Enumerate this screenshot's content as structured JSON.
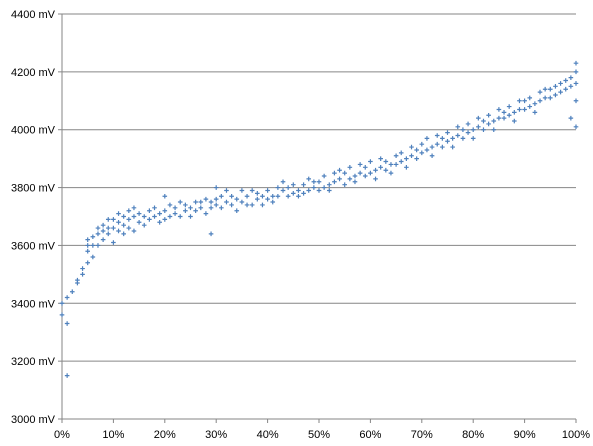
{
  "chart_data": {
    "type": "scatter",
    "title": "",
    "xlabel": "",
    "ylabel": "",
    "xlim": [
      0,
      100
    ],
    "ylim": [
      3000,
      4400
    ],
    "grid": true,
    "legend": "none",
    "marker": "plus",
    "color": "#4f81bd",
    "x_ticks": [
      {
        "value": 0,
        "label": "0%"
      },
      {
        "value": 10,
        "label": "10%"
      },
      {
        "value": 20,
        "label": "20%"
      },
      {
        "value": 30,
        "label": "30%"
      },
      {
        "value": 40,
        "label": "40%"
      },
      {
        "value": 50,
        "label": "50%"
      },
      {
        "value": 60,
        "label": "60%"
      },
      {
        "value": 70,
        "label": "70%"
      },
      {
        "value": 80,
        "label": "80%"
      },
      {
        "value": 90,
        "label": "90%"
      },
      {
        "value": 100,
        "label": "100%"
      }
    ],
    "y_ticks": [
      {
        "value": 3000,
        "label": "3000 mV"
      },
      {
        "value": 3200,
        "label": "3200 mV"
      },
      {
        "value": 3400,
        "label": "3400 mV"
      },
      {
        "value": 3600,
        "label": "3600 mV"
      },
      {
        "value": 3800,
        "label": "3800 mV"
      },
      {
        "value": 4000,
        "label": "4000 mV"
      },
      {
        "value": 4200,
        "label": "4200 mV"
      },
      {
        "value": 4400,
        "label": "4400 mV"
      }
    ],
    "series": [
      {
        "points": [
          [
            0,
            3400
          ],
          [
            0,
            3360
          ],
          [
            1,
            3420
          ],
          [
            1,
            3330
          ],
          [
            1,
            3150
          ],
          [
            2,
            3440
          ],
          [
            3,
            3480
          ],
          [
            3,
            3470
          ],
          [
            4,
            3500
          ],
          [
            4,
            3520
          ],
          [
            5,
            3540
          ],
          [
            5,
            3580
          ],
          [
            5,
            3600
          ],
          [
            5,
            3620
          ],
          [
            6,
            3560
          ],
          [
            6,
            3600
          ],
          [
            6,
            3630
          ],
          [
            7,
            3600
          ],
          [
            7,
            3640
          ],
          [
            7,
            3660
          ],
          [
            8,
            3620
          ],
          [
            8,
            3650
          ],
          [
            8,
            3670
          ],
          [
            9,
            3640
          ],
          [
            9,
            3660
          ],
          [
            9,
            3690
          ],
          [
            10,
            3610
          ],
          [
            10,
            3660
          ],
          [
            10,
            3690
          ],
          [
            11,
            3650
          ],
          [
            11,
            3680
          ],
          [
            11,
            3710
          ],
          [
            12,
            3640
          ],
          [
            12,
            3670
          ],
          [
            12,
            3700
          ],
          [
            13,
            3660
          ],
          [
            13,
            3690
          ],
          [
            13,
            3720
          ],
          [
            14,
            3650
          ],
          [
            14,
            3700
          ],
          [
            14,
            3730
          ],
          [
            15,
            3680
          ],
          [
            15,
            3710
          ],
          [
            16,
            3700
          ],
          [
            16,
            3670
          ],
          [
            17,
            3690
          ],
          [
            17,
            3720
          ],
          [
            18,
            3700
          ],
          [
            18,
            3730
          ],
          [
            19,
            3710
          ],
          [
            19,
            3680
          ],
          [
            20,
            3690
          ],
          [
            20,
            3720
          ],
          [
            20,
            3770
          ],
          [
            21,
            3700
          ],
          [
            21,
            3740
          ],
          [
            22,
            3710
          ],
          [
            22,
            3730
          ],
          [
            23,
            3700
          ],
          [
            23,
            3750
          ],
          [
            24,
            3720
          ],
          [
            24,
            3740
          ],
          [
            25,
            3700
          ],
          [
            25,
            3730
          ],
          [
            26,
            3720
          ],
          [
            26,
            3750
          ],
          [
            27,
            3730
          ],
          [
            27,
            3750
          ],
          [
            28,
            3710
          ],
          [
            28,
            3760
          ],
          [
            29,
            3730
          ],
          [
            29,
            3750
          ],
          [
            29,
            3640
          ],
          [
            30,
            3740
          ],
          [
            30,
            3760
          ],
          [
            30,
            3800
          ],
          [
            31,
            3730
          ],
          [
            31,
            3770
          ],
          [
            32,
            3750
          ],
          [
            32,
            3790
          ],
          [
            33,
            3740
          ],
          [
            33,
            3770
          ],
          [
            34,
            3720
          ],
          [
            34,
            3760
          ],
          [
            35,
            3750
          ],
          [
            35,
            3790
          ],
          [
            36,
            3740
          ],
          [
            36,
            3770
          ],
          [
            37,
            3740
          ],
          [
            37,
            3790
          ],
          [
            38,
            3760
          ],
          [
            38,
            3780
          ],
          [
            39,
            3740
          ],
          [
            39,
            3770
          ],
          [
            40,
            3760
          ],
          [
            40,
            3790
          ],
          [
            41,
            3770
          ],
          [
            41,
            3750
          ],
          [
            42,
            3770
          ],
          [
            42,
            3800
          ],
          [
            43,
            3790
          ],
          [
            43,
            3820
          ],
          [
            44,
            3770
          ],
          [
            44,
            3800
          ],
          [
            45,
            3780
          ],
          [
            45,
            3810
          ],
          [
            46,
            3790
          ],
          [
            46,
            3770
          ],
          [
            47,
            3780
          ],
          [
            47,
            3810
          ],
          [
            48,
            3790
          ],
          [
            48,
            3830
          ],
          [
            49,
            3800
          ],
          [
            49,
            3820
          ],
          [
            50,
            3790
          ],
          [
            50,
            3820
          ],
          [
            51,
            3800
          ],
          [
            51,
            3840
          ],
          [
            52,
            3810
          ],
          [
            52,
            3790
          ],
          [
            53,
            3820
          ],
          [
            53,
            3850
          ],
          [
            54,
            3830
          ],
          [
            54,
            3860
          ],
          [
            55,
            3810
          ],
          [
            55,
            3850
          ],
          [
            56,
            3830
          ],
          [
            56,
            3870
          ],
          [
            57,
            3840
          ],
          [
            57,
            3820
          ],
          [
            58,
            3850
          ],
          [
            58,
            3880
          ],
          [
            59,
            3840
          ],
          [
            59,
            3870
          ],
          [
            60,
            3850
          ],
          [
            60,
            3890
          ],
          [
            61,
            3860
          ],
          [
            61,
            3830
          ],
          [
            62,
            3870
          ],
          [
            62,
            3900
          ],
          [
            63,
            3860
          ],
          [
            63,
            3890
          ],
          [
            64,
            3880
          ],
          [
            64,
            3850
          ],
          [
            65,
            3880
          ],
          [
            65,
            3910
          ],
          [
            66,
            3890
          ],
          [
            66,
            3920
          ],
          [
            67,
            3900
          ],
          [
            67,
            3870
          ],
          [
            68,
            3910
          ],
          [
            68,
            3940
          ],
          [
            69,
            3900
          ],
          [
            69,
            3930
          ],
          [
            70,
            3920
          ],
          [
            70,
            3950
          ],
          [
            71,
            3930
          ],
          [
            71,
            3970
          ],
          [
            72,
            3940
          ],
          [
            72,
            3910
          ],
          [
            73,
            3950
          ],
          [
            73,
            3980
          ],
          [
            74,
            3940
          ],
          [
            74,
            3970
          ],
          [
            75,
            3960
          ],
          [
            75,
            3990
          ],
          [
            76,
            3970
          ],
          [
            76,
            3940
          ],
          [
            77,
            3980
          ],
          [
            77,
            4010
          ],
          [
            78,
            3970
          ],
          [
            78,
            4000
          ],
          [
            79,
            3990
          ],
          [
            79,
            4020
          ],
          [
            80,
            4000
          ],
          [
            80,
            3970
          ],
          [
            81,
            4010
          ],
          [
            81,
            4040
          ],
          [
            82,
            4000
          ],
          [
            82,
            4030
          ],
          [
            83,
            4020
          ],
          [
            83,
            4050
          ],
          [
            84,
            4030
          ],
          [
            84,
            4000
          ],
          [
            85,
            4040
          ],
          [
            85,
            4070
          ],
          [
            86,
            4040
          ],
          [
            86,
            4060
          ],
          [
            87,
            4050
          ],
          [
            87,
            4080
          ],
          [
            88,
            4060
          ],
          [
            88,
            4030
          ],
          [
            89,
            4070
          ],
          [
            89,
            4100
          ],
          [
            90,
            4070
          ],
          [
            90,
            4100
          ],
          [
            91,
            4080
          ],
          [
            91,
            4110
          ],
          [
            92,
            4090
          ],
          [
            92,
            4060
          ],
          [
            93,
            4100
          ],
          [
            93,
            4130
          ],
          [
            94,
            4110
          ],
          [
            94,
            4140
          ],
          [
            95,
            4110
          ],
          [
            95,
            4140
          ],
          [
            96,
            4120
          ],
          [
            96,
            4150
          ],
          [
            97,
            4130
          ],
          [
            97,
            4160
          ],
          [
            98,
            4140
          ],
          [
            98,
            4170
          ],
          [
            99,
            4150
          ],
          [
            99,
            4180
          ],
          [
            100,
            4160
          ],
          [
            100,
            4200
          ],
          [
            100,
            4230
          ],
          [
            100,
            4100
          ],
          [
            100,
            4010
          ],
          [
            99,
            4040
          ]
        ]
      }
    ]
  }
}
